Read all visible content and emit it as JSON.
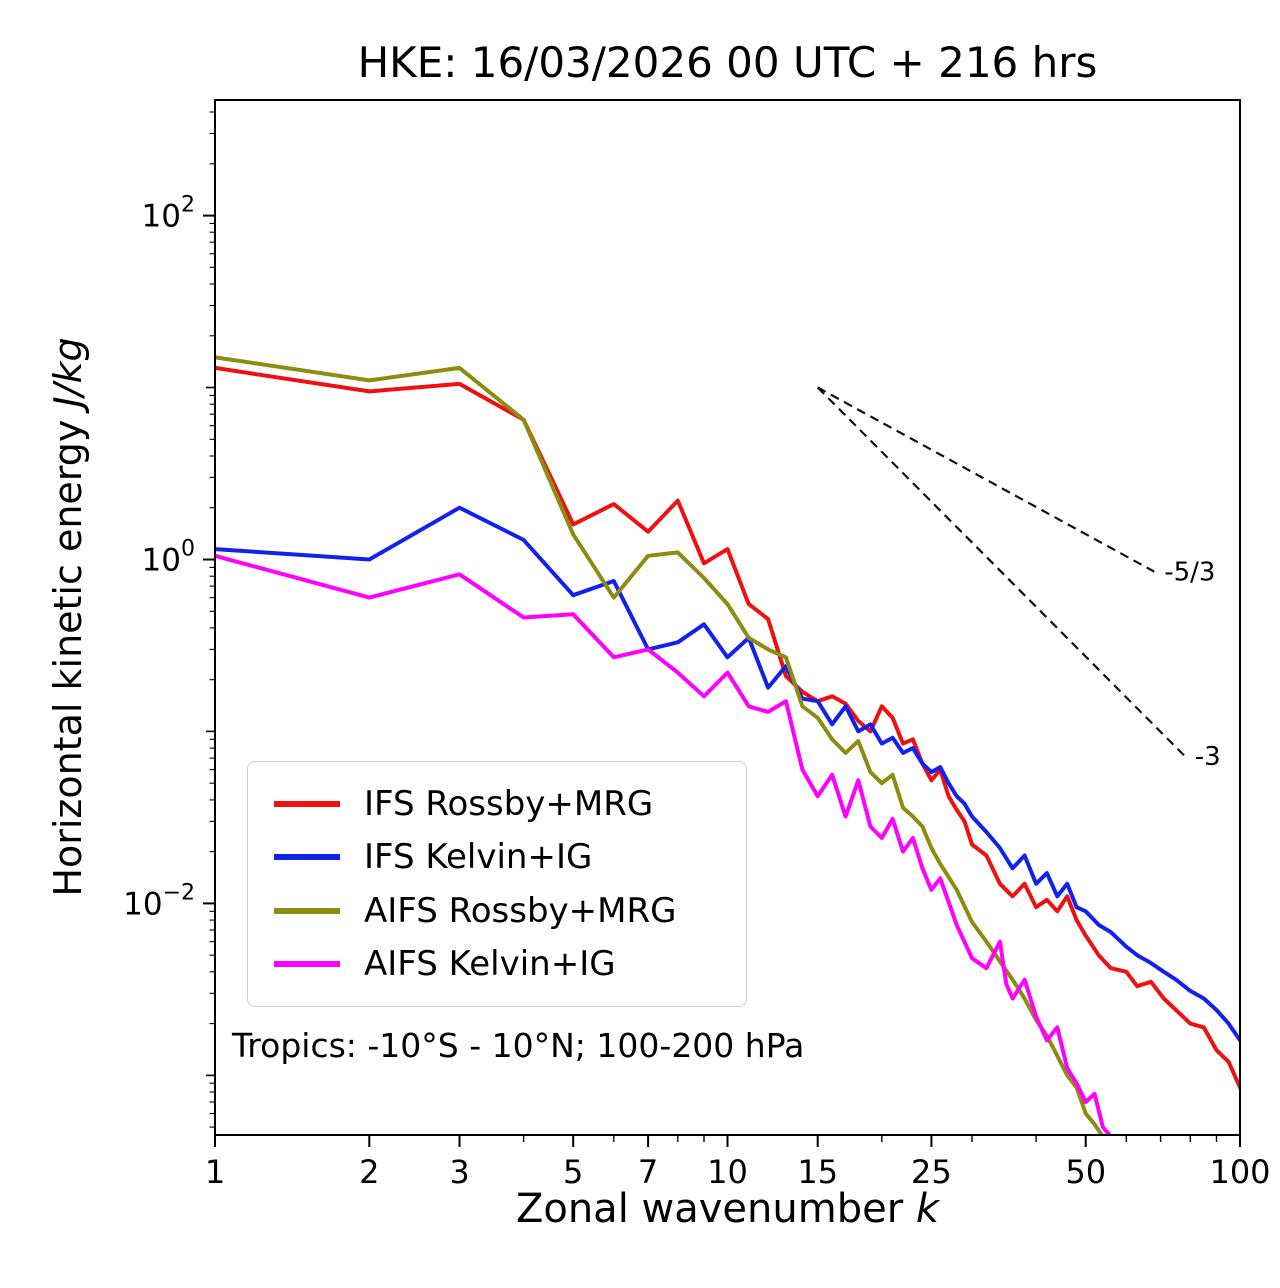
{
  "title": "HKE: 16/03/2026 00 UTC + 216 hrs",
  "subtitle": "Tropics: -10°S - 10°N; 100-200 hPa",
  "xlabel": {
    "text": "Zonal wavenumber",
    "math": "k"
  },
  "ylabel": {
    "text": "Horizontal kinetic energy",
    "math": "J/kg"
  },
  "chart_data": {
    "type": "line",
    "x_scale": "log",
    "y_scale": "log",
    "xlim": [
      1,
      100
    ],
    "ylim": [
      0.00045,
      470
    ],
    "grid": false,
    "legend_position": "lower left",
    "xticks": [
      1,
      2,
      3,
      5,
      7,
      10,
      15,
      25,
      50,
      100
    ],
    "xtick_labels": [
      "1",
      "2",
      "3",
      "5",
      "7",
      "10",
      "15",
      "25",
      "50",
      "100"
    ],
    "x_minor_ticks": [
      4,
      6,
      8,
      9,
      20,
      30,
      40,
      60,
      70,
      80,
      90
    ],
    "ytick_exponents": [
      2,
      0,
      -2
    ],
    "y_decade_ticks": [
      1,
      -1,
      -3
    ],
    "series": [
      {
        "name": "IFS Rossby+MRG",
        "color": "#ee1111",
        "points": [
          [
            1,
            13
          ],
          [
            2,
            9.5
          ],
          [
            3,
            10.5
          ],
          [
            4,
            6.5
          ],
          [
            5,
            1.6
          ],
          [
            6,
            2.1
          ],
          [
            7,
            1.45
          ],
          [
            8,
            2.2
          ],
          [
            9,
            0.95
          ],
          [
            10,
            1.15
          ],
          [
            11,
            0.55
          ],
          [
            12,
            0.45
          ],
          [
            13,
            0.21
          ],
          [
            14,
            0.17
          ],
          [
            15,
            0.15
          ],
          [
            16,
            0.16
          ],
          [
            17,
            0.145
          ],
          [
            18,
            0.115
          ],
          [
            19,
            0.1
          ],
          [
            20,
            0.14
          ],
          [
            21,
            0.12
          ],
          [
            22,
            0.085
          ],
          [
            23,
            0.09
          ],
          [
            24,
            0.065
          ],
          [
            25,
            0.052
          ],
          [
            26,
            0.06
          ],
          [
            27,
            0.042
          ],
          [
            28,
            0.035
          ],
          [
            29,
            0.03
          ],
          [
            30,
            0.022
          ],
          [
            32,
            0.019
          ],
          [
            34,
            0.013
          ],
          [
            36,
            0.011
          ],
          [
            38,
            0.013
          ],
          [
            40,
            0.0095
          ],
          [
            42,
            0.0105
          ],
          [
            44,
            0.009
          ],
          [
            46,
            0.011
          ],
          [
            48,
            0.008
          ],
          [
            50,
            0.0065
          ],
          [
            53,
            0.005
          ],
          [
            56,
            0.0042
          ],
          [
            60,
            0.004
          ],
          [
            63,
            0.0033
          ],
          [
            67,
            0.0035
          ],
          [
            71,
            0.0028
          ],
          [
            75,
            0.0024
          ],
          [
            80,
            0.002
          ],
          [
            85,
            0.0019
          ],
          [
            90,
            0.0014
          ],
          [
            95,
            0.0012
          ],
          [
            100,
            0.00085
          ]
        ]
      },
      {
        "name": "IFS Kelvin+IG",
        "color": "#1122ee",
        "points": [
          [
            1,
            1.15
          ],
          [
            2,
            1.0
          ],
          [
            3,
            2.0
          ],
          [
            4,
            1.3
          ],
          [
            5,
            0.62
          ],
          [
            6,
            0.75
          ],
          [
            7,
            0.3
          ],
          [
            8,
            0.33
          ],
          [
            9,
            0.42
          ],
          [
            10,
            0.27
          ],
          [
            11,
            0.35
          ],
          [
            12,
            0.18
          ],
          [
            13,
            0.24
          ],
          [
            14,
            0.155
          ],
          [
            15,
            0.15
          ],
          [
            16,
            0.11
          ],
          [
            17,
            0.14
          ],
          [
            18,
            0.1
          ],
          [
            19,
            0.11
          ],
          [
            20,
            0.085
          ],
          [
            21,
            0.092
          ],
          [
            22,
            0.075
          ],
          [
            23,
            0.08
          ],
          [
            24,
            0.065
          ],
          [
            25,
            0.058
          ],
          [
            26,
            0.062
          ],
          [
            27,
            0.05
          ],
          [
            28,
            0.042
          ],
          [
            29,
            0.038
          ],
          [
            30,
            0.032
          ],
          [
            32,
            0.026
          ],
          [
            34,
            0.021
          ],
          [
            36,
            0.016
          ],
          [
            38,
            0.019
          ],
          [
            40,
            0.013
          ],
          [
            42,
            0.015
          ],
          [
            44,
            0.011
          ],
          [
            46,
            0.013
          ],
          [
            48,
            0.0095
          ],
          [
            50,
            0.009
          ],
          [
            53,
            0.0075
          ],
          [
            56,
            0.0068
          ],
          [
            60,
            0.0056
          ],
          [
            63,
            0.005
          ],
          [
            67,
            0.0045
          ],
          [
            71,
            0.004
          ],
          [
            75,
            0.0036
          ],
          [
            80,
            0.0031
          ],
          [
            85,
            0.0028
          ],
          [
            90,
            0.0024
          ],
          [
            95,
            0.002
          ],
          [
            100,
            0.0016
          ]
        ]
      },
      {
        "name": "AIFS Rossby+MRG",
        "color": "#8c8c10",
        "points": [
          [
            1,
            15
          ],
          [
            2,
            11
          ],
          [
            3,
            13
          ],
          [
            4,
            6.5
          ],
          [
            5,
            1.4
          ],
          [
            6,
            0.6
          ],
          [
            7,
            1.05
          ],
          [
            8,
            1.1
          ],
          [
            9,
            0.78
          ],
          [
            10,
            0.55
          ],
          [
            11,
            0.35
          ],
          [
            12,
            0.3
          ],
          [
            13,
            0.27
          ],
          [
            14,
            0.14
          ],
          [
            15,
            0.12
          ],
          [
            16,
            0.09
          ],
          [
            17,
            0.075
          ],
          [
            18,
            0.088
          ],
          [
            19,
            0.058
          ],
          [
            20,
            0.05
          ],
          [
            21,
            0.056
          ],
          [
            22,
            0.036
          ],
          [
            23,
            0.032
          ],
          [
            24,
            0.028
          ],
          [
            25,
            0.021
          ],
          [
            26,
            0.017
          ],
          [
            28,
            0.012
          ],
          [
            30,
            0.0078
          ],
          [
            32,
            0.006
          ],
          [
            34,
            0.0046
          ],
          [
            36,
            0.0036
          ],
          [
            38,
            0.0028
          ],
          [
            40,
            0.0021
          ],
          [
            42,
            0.0017
          ],
          [
            44,
            0.0013
          ],
          [
            46,
            0.001
          ],
          [
            48,
            0.00085
          ],
          [
            50,
            0.0006
          ],
          [
            52,
            0.00052
          ],
          [
            54,
            0.00044
          ],
          [
            56,
            0.00038
          ]
        ]
      },
      {
        "name": "AIFS Kelvin+IG",
        "color": "#ff00ff",
        "points": [
          [
            1,
            1.05
          ],
          [
            2,
            0.6
          ],
          [
            3,
            0.82
          ],
          [
            4,
            0.46
          ],
          [
            5,
            0.48
          ],
          [
            6,
            0.27
          ],
          [
            7,
            0.3
          ],
          [
            8,
            0.22
          ],
          [
            9,
            0.16
          ],
          [
            10,
            0.22
          ],
          [
            11,
            0.14
          ],
          [
            12,
            0.13
          ],
          [
            13,
            0.15
          ],
          [
            14,
            0.06
          ],
          [
            15,
            0.042
          ],
          [
            16,
            0.056
          ],
          [
            17,
            0.032
          ],
          [
            18,
            0.052
          ],
          [
            19,
            0.028
          ],
          [
            20,
            0.024
          ],
          [
            21,
            0.031
          ],
          [
            22,
            0.02
          ],
          [
            23,
            0.024
          ],
          [
            24,
            0.016
          ],
          [
            25,
            0.012
          ],
          [
            26,
            0.014
          ],
          [
            28,
            0.0075
          ],
          [
            30,
            0.0048
          ],
          [
            32,
            0.0042
          ],
          [
            34,
            0.006
          ],
          [
            35,
            0.0034
          ],
          [
            36,
            0.0028
          ],
          [
            38,
            0.0036
          ],
          [
            40,
            0.0022
          ],
          [
            42,
            0.0016
          ],
          [
            44,
            0.0019
          ],
          [
            46,
            0.0011
          ],
          [
            48,
            0.0009
          ],
          [
            50,
            0.0007
          ],
          [
            52,
            0.00078
          ],
          [
            54,
            0.0005
          ],
          [
            56,
            0.00044
          ],
          [
            58,
            0.00036
          ]
        ]
      }
    ],
    "ref_lines": [
      {
        "label": "-5/3",
        "x": [
          15,
          68
        ],
        "y": [
          10,
          0.85
        ]
      },
      {
        "label": "-3",
        "x": [
          15,
          78
        ],
        "y": [
          10,
          0.072
        ]
      }
    ]
  }
}
